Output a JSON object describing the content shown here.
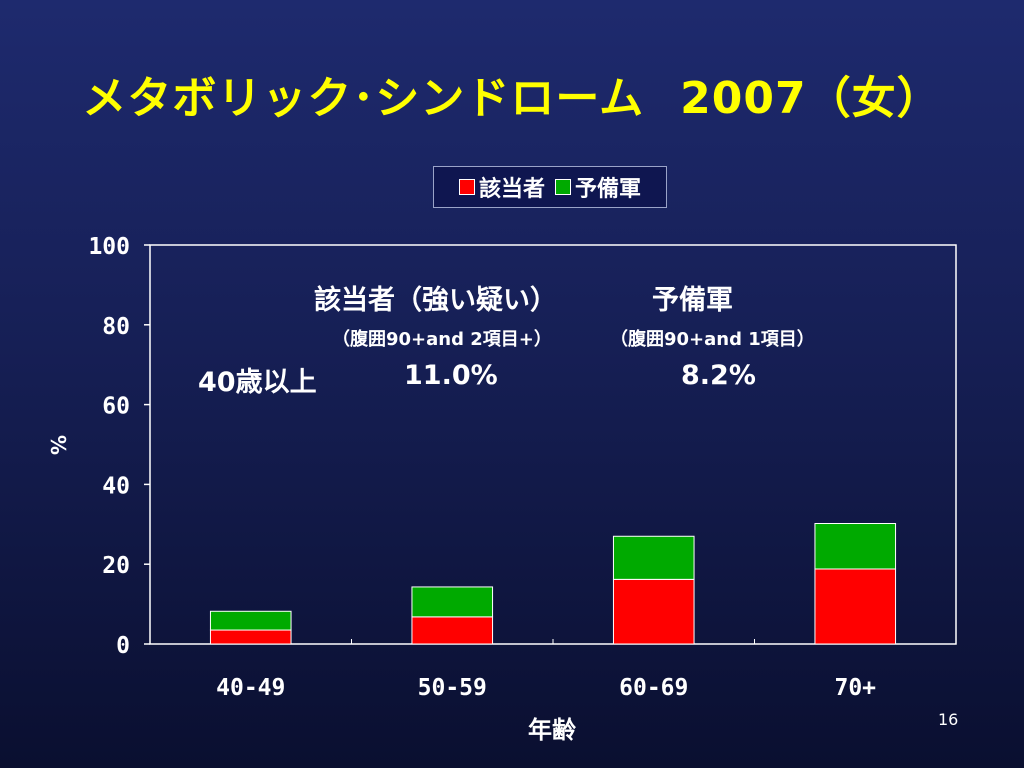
{
  "slide": {
    "title_main": "メタボリック･シンドローム",
    "title_year": "2007",
    "title_paren": "（女）",
    "page_number": "16"
  },
  "colors": {
    "background": "#161f55",
    "title": "#ffff00",
    "text": "#ffffff",
    "series1": "#ff0000",
    "series2": "#00aa00"
  },
  "annotations": {
    "label_metabolic": "該当者（強い疑い）",
    "label_pre": "予備軍",
    "criteria_metabolic": "（腹囲90+and 2項目+）",
    "criteria_pre": "（腹囲90+and 1項目）",
    "age_group": "40歳以上",
    "value_metabolic": "11.0%",
    "value_pre": "8.2%"
  },
  "chart_data": {
    "type": "bar",
    "stacked": true,
    "categories": [
      "40-49",
      "50-59",
      "60-69",
      "70+"
    ],
    "series": [
      {
        "name": "該当者",
        "values": [
          3.5,
          6.8,
          16.2,
          18.8
        ],
        "color": "#ff0000"
      },
      {
        "name": "予備軍",
        "values": [
          4.7,
          7.5,
          10.8,
          11.4
        ],
        "color": "#00aa00"
      }
    ],
    "xlabel": "年齢",
    "ylabel": "%",
    "ylim": [
      0,
      100
    ],
    "yticks": [
      0,
      20,
      40,
      60,
      80,
      100
    ],
    "legend": "top-center",
    "grid": false
  }
}
